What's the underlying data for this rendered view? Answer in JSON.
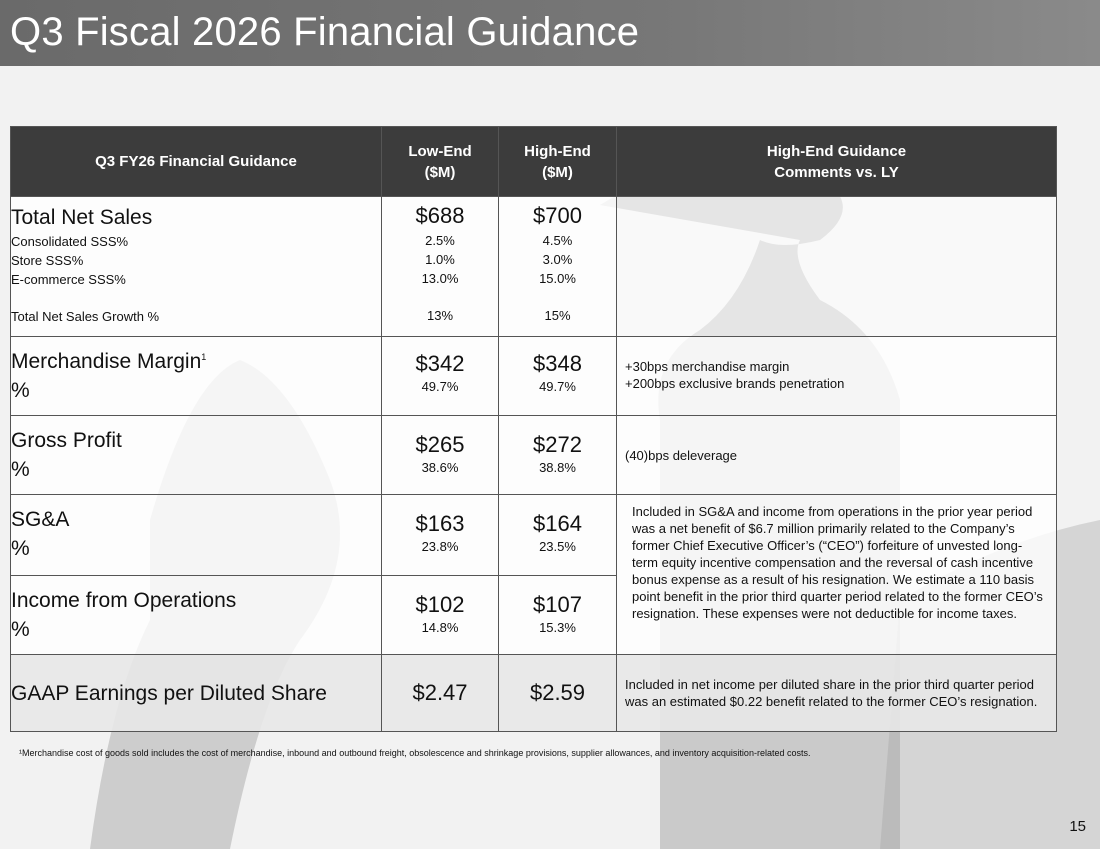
{
  "slide": {
    "title": "Q3 Fiscal 2026 Financial Guidance",
    "page_number": "15",
    "footnote": "¹Merchandise cost of goods sold includes the cost of merchandise, inbound and outbound freight, obsolescence and shrinkage provisions, supplier allowances, and inventory acquisition-related costs."
  },
  "table": {
    "headers": {
      "label": "Q3 FY26 Financial Guidance",
      "low_line1": "Low-End",
      "low_line2": "($M)",
      "high_line1": "High-End",
      "high_line2": "($M)",
      "comments_line1": "High-End Guidance",
      "comments_line2": "Comments vs. LY"
    },
    "net_sales": {
      "label": "Total Net Sales",
      "low": "$688",
      "high": "$700",
      "sub": [
        {
          "label": "Consolidated SSS%",
          "low": "2.5%",
          "high": "4.5%"
        },
        {
          "label": "Store SSS%",
          "low": "1.0%",
          "high": "3.0%"
        },
        {
          "label": "E-commerce SSS%",
          "low": "13.0%",
          "high": "15.0%"
        }
      ],
      "growth": {
        "label": "Total Net Sales Growth %",
        "low": "13%",
        "high": "15%"
      }
    },
    "merch_margin": {
      "label": "Merchandise Margin",
      "sup": "1",
      "pct_label": "%",
      "low": "$342",
      "low_pct": "49.7%",
      "high": "$348",
      "high_pct": "49.7%",
      "comment_line1": "+30bps merchandise margin",
      "comment_line2": "+200bps exclusive brands penetration"
    },
    "gross_profit": {
      "label": "Gross Profit",
      "pct_label": "%",
      "low": "$265",
      "low_pct": "38.6%",
      "high": "$272",
      "high_pct": "38.8%",
      "comment": "(40)bps deleverage"
    },
    "sga": {
      "label": "SG&A",
      "pct_label": "%",
      "low": "$163",
      "low_pct": "23.8%",
      "high": "$164",
      "high_pct": "23.5%",
      "comment": "Included in SG&A and income from operations in the prior year period was a net benefit of $6.7 million primarily related to the Company’s former Chief Executive Officer’s (“CEO”) forfeiture of unvested long-term equity incentive compensation and the reversal of cash incentive bonus expense as a result of his resignation. We estimate a 110 basis point benefit in the prior third quarter period related to the former CEO’s resignation. These expenses were not deductible for income taxes."
    },
    "income_ops": {
      "label": "Income from Operations",
      "pct_label": "%",
      "low": "$102",
      "low_pct": "14.8%",
      "high": "$107",
      "high_pct": "15.3%"
    },
    "eps": {
      "label": "GAAP Earnings per Diluted Share",
      "low": "$2.47",
      "high": "$2.59",
      "comment": "Included in net income per diluted share in the prior third quarter period was an estimated $0.22 benefit related to the former CEO’s resignation."
    }
  }
}
